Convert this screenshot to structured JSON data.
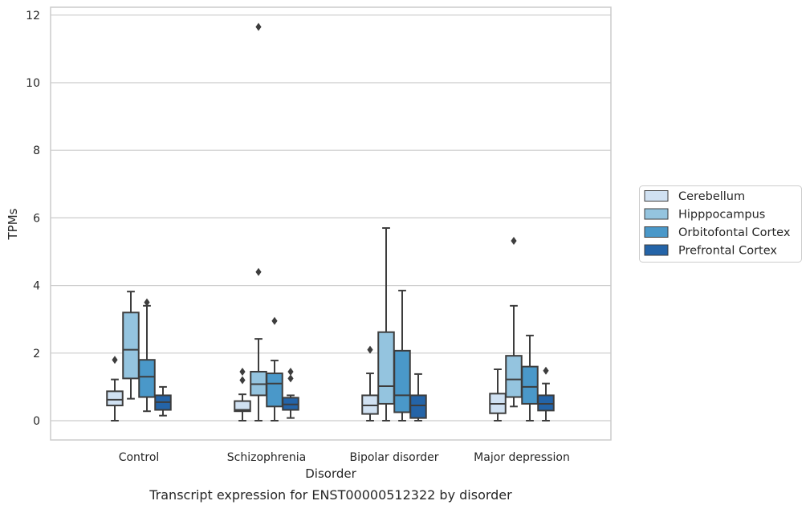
{
  "chart_data": {
    "type": "box",
    "title": "",
    "caption": "Transcript expression for ENST00000512322 by disorder",
    "xlabel": "Disorder",
    "ylabel": "TPMs",
    "ylim": [
      -0.55,
      12.2
    ],
    "yticks": [
      0,
      2,
      4,
      6,
      8,
      10,
      12
    ],
    "grid": true,
    "legend_position": "right",
    "categories": [
      "Control",
      "Schizophrenia",
      "Bipolar disorder",
      "Major depression"
    ],
    "series": [
      {
        "name": "Cerebellum",
        "color": "#d0e1f2",
        "boxes": [
          {
            "whislo": 0.0,
            "q1": 0.45,
            "med": 0.62,
            "q3": 0.87,
            "whishi": 1.22,
            "fliers": [
              1.8
            ]
          },
          {
            "whislo": 0.0,
            "q1": 0.28,
            "med": 0.32,
            "q3": 0.58,
            "whishi": 0.78,
            "fliers": [
              1.2,
              1.45
            ]
          },
          {
            "whislo": 0.0,
            "q1": 0.2,
            "med": 0.45,
            "q3": 0.75,
            "whishi": 1.4,
            "fliers": [
              2.1
            ]
          },
          {
            "whislo": 0.0,
            "q1": 0.22,
            "med": 0.5,
            "q3": 0.8,
            "whishi": 1.52,
            "fliers": []
          }
        ]
      },
      {
        "name": "Hipppocampus",
        "color": "#94c4df",
        "boxes": [
          {
            "whislo": 0.65,
            "q1": 1.25,
            "med": 2.1,
            "q3": 3.2,
            "whishi": 3.82,
            "fliers": []
          },
          {
            "whislo": 0.0,
            "q1": 0.75,
            "med": 1.08,
            "q3": 1.45,
            "whishi": 2.42,
            "fliers": [
              4.4,
              11.65
            ]
          },
          {
            "whislo": 0.0,
            "q1": 0.5,
            "med": 1.02,
            "q3": 2.62,
            "whishi": 5.7,
            "fliers": []
          },
          {
            "whislo": 0.42,
            "q1": 0.7,
            "med": 1.22,
            "q3": 1.92,
            "whishi": 3.4,
            "fliers": [
              5.32
            ]
          }
        ]
      },
      {
        "name": "Orbitofontal Cortex",
        "color": "#4a98c9",
        "boxes": [
          {
            "whislo": 0.28,
            "q1": 0.7,
            "med": 1.3,
            "q3": 1.8,
            "whishi": 3.4,
            "fliers": [
              3.5
            ]
          },
          {
            "whislo": 0.0,
            "q1": 0.42,
            "med": 1.1,
            "q3": 1.4,
            "whishi": 1.78,
            "fliers": [
              2.95
            ]
          },
          {
            "whislo": 0.0,
            "q1": 0.25,
            "med": 0.75,
            "q3": 2.07,
            "whishi": 3.85,
            "fliers": []
          },
          {
            "whislo": 0.0,
            "q1": 0.5,
            "med": 1.0,
            "q3": 1.6,
            "whishi": 2.52,
            "fliers": []
          }
        ]
      },
      {
        "name": "Prefrontal Cortex",
        "color": "#2464a8",
        "boxes": [
          {
            "whislo": 0.15,
            "q1": 0.32,
            "med": 0.55,
            "q3": 0.75,
            "whishi": 1.0,
            "fliers": []
          },
          {
            "whislo": 0.08,
            "q1": 0.32,
            "med": 0.48,
            "q3": 0.68,
            "whishi": 0.75,
            "fliers": [
              1.25,
              1.45
            ]
          },
          {
            "whislo": 0.0,
            "q1": 0.08,
            "med": 0.45,
            "q3": 0.75,
            "whishi": 1.38,
            "fliers": []
          },
          {
            "whislo": 0.0,
            "q1": 0.3,
            "med": 0.5,
            "q3": 0.75,
            "whishi": 1.1,
            "fliers": [
              1.48
            ]
          }
        ]
      }
    ]
  }
}
